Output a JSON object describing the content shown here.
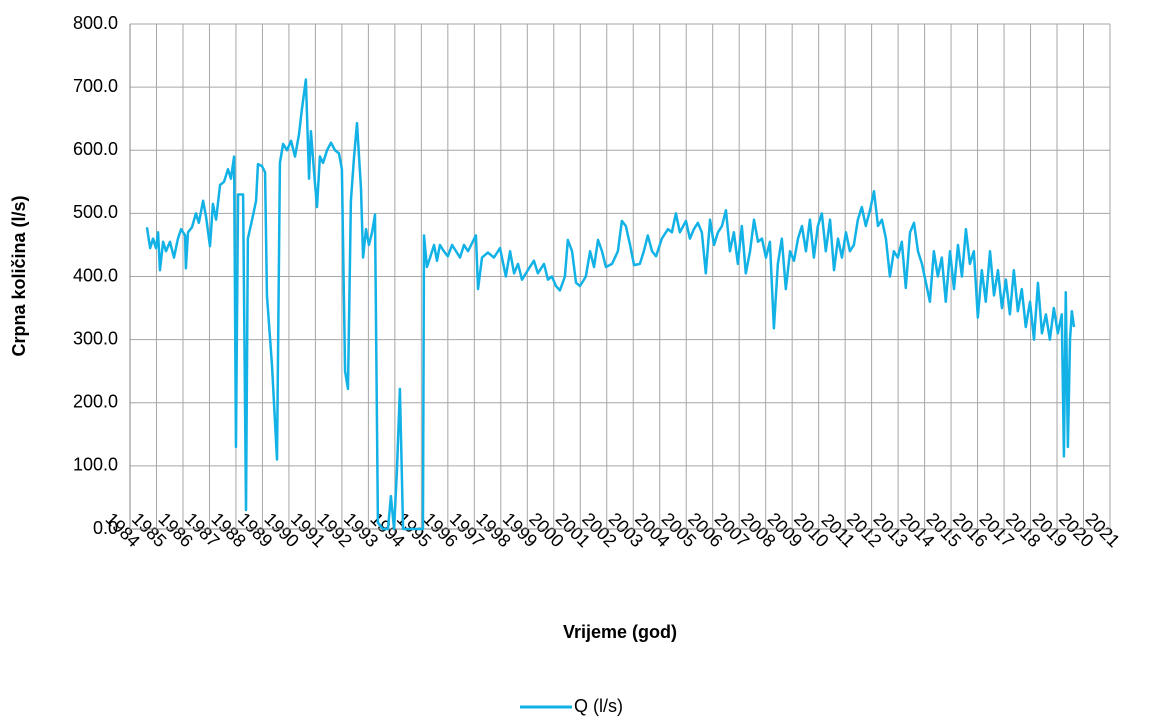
{
  "chart_data": {
    "type": "line",
    "x_label": "Vrijeme (god)",
    "y_label": "Crpna količina (l/s)",
    "xlim": [
      1984,
      2021
    ],
    "xticks": [
      1984,
      1985,
      1986,
      1987,
      1988,
      1989,
      1990,
      1991,
      1992,
      1993,
      1994,
      1995,
      1996,
      1997,
      1998,
      1999,
      2000,
      2001,
      2002,
      2003,
      2004,
      2005,
      2006,
      2007,
      2008,
      2009,
      2010,
      2011,
      2012,
      2013,
      2014,
      2015,
      2016,
      2017,
      2018,
      2019,
      2020,
      2021
    ],
    "ylim": [
      0,
      800
    ],
    "yticks": [
      {
        "value": 0,
        "label": "0.0"
      },
      {
        "value": 100,
        "label": "100.0"
      },
      {
        "value": 200,
        "label": "200.0"
      },
      {
        "value": 300,
        "label": "300.0"
      },
      {
        "value": 400,
        "label": "400.0"
      },
      {
        "value": 500,
        "label": "500.0"
      },
      {
        "value": 600,
        "label": "600.0"
      },
      {
        "value": 700,
        "label": "700.0"
      },
      {
        "value": 800,
        "label": "800.0"
      }
    ],
    "grid": true,
    "legend": "bottom",
    "x": [
      1984.64,
      1984.76,
      1984.87,
      1984.98,
      1985.06,
      1985.13,
      1985.25,
      1985.36,
      1985.51,
      1985.66,
      1985.81,
      1985.93,
      1986.08,
      1986.11,
      1986.19,
      1986.34,
      1986.49,
      1986.6,
      1986.76,
      1986.87,
      1987.02,
      1987.13,
      1987.25,
      1987.4,
      1987.55,
      1987.7,
      1987.81,
      1987.93,
      1988.0,
      1988.08,
      1988.27,
      1988.38,
      1988.45,
      1988.61,
      1988.76,
      1988.83,
      1988.98,
      1989.1,
      1989.17,
      1989.36,
      1989.55,
      1989.66,
      1989.78,
      1989.93,
      1990.08,
      1990.23,
      1990.38,
      1990.49,
      1990.64,
      1990.76,
      1990.83,
      1990.95,
      1991.06,
      1991.17,
      1991.29,
      1991.44,
      1991.59,
      1991.74,
      1991.89,
      1992.0,
      1992.12,
      1992.23,
      1992.34,
      1992.46,
      1992.57,
      1992.72,
      1992.8,
      1992.91,
      1993.02,
      1993.14,
      1993.25,
      1993.36,
      1993.55,
      1993.74,
      1993.85,
      1993.97,
      1994.08,
      1994.19,
      1994.31,
      1994.57,
      1994.87,
      1995.06,
      1995.1,
      1995.21,
      1995.33,
      1995.48,
      1995.59,
      1995.7,
      1995.85,
      1996.0,
      1996.16,
      1996.31,
      1996.46,
      1996.61,
      1996.76,
      1997.06,
      1997.14,
      1997.29,
      1997.51,
      1997.74,
      1997.97,
      1998.19,
      1998.35,
      1998.5,
      1998.65,
      1998.8,
      1999.02,
      1999.25,
      1999.4,
      1999.63,
      1999.78,
      1999.93,
      2000.08,
      2000.23,
      2000.42,
      2000.53,
      2000.69,
      2000.84,
      2000.99,
      2001.21,
      2001.37,
      2001.52,
      2001.67,
      2001.82,
      2001.97,
      2002.2,
      2002.42,
      2002.57,
      2002.72,
      2002.88,
      2003.03,
      2003.25,
      2003.4,
      2003.55,
      2003.71,
      2003.86,
      2004.08,
      2004.31,
      2004.46,
      2004.61,
      2004.76,
      2004.99,
      2005.14,
      2005.29,
      2005.44,
      2005.59,
      2005.74,
      2005.9,
      2006.05,
      2006.2,
      2006.35,
      2006.5,
      2006.65,
      2006.8,
      2006.95,
      2007.1,
      2007.25,
      2007.41,
      2007.56,
      2007.71,
      2007.86,
      2008.01,
      2008.16,
      2008.31,
      2008.46,
      2008.61,
      2008.76,
      2008.92,
      2009.07,
      2009.22,
      2009.37,
      2009.52,
      2009.67,
      2009.82,
      2009.97,
      2010.12,
      2010.27,
      2010.43,
      2010.58,
      2010.73,
      2010.88,
      2011.03,
      2011.18,
      2011.33,
      2011.48,
      2011.63,
      2011.78,
      2011.94,
      2012.09,
      2012.24,
      2012.39,
      2012.54,
      2012.69,
      2012.84,
      2012.99,
      2013.14,
      2013.29,
      2013.45,
      2013.6,
      2013.75,
      2013.9,
      2014.05,
      2014.2,
      2014.35,
      2014.5,
      2014.65,
      2014.8,
      2014.96,
      2015.11,
      2015.26,
      2015.41,
      2015.56,
      2015.71,
      2015.86,
      2016.01,
      2016.16,
      2016.31,
      2016.47,
      2016.62,
      2016.77,
      2016.92,
      2017.07,
      2017.22,
      2017.37,
      2017.52,
      2017.67,
      2017.82,
      2017.98,
      2018.13,
      2018.28,
      2018.43,
      2018.58,
      2018.73,
      2018.88,
      2019.03,
      2019.18,
      2019.26,
      2019.33,
      2019.41,
      2019.49,
      2019.56,
      2019.64
    ],
    "series": [
      {
        "name": "Q (l/s)",
        "color": "#12b1e6",
        "values": [
          478,
          445,
          460,
          445,
          470,
          410,
          455,
          440,
          455,
          430,
          460,
          475,
          465,
          413,
          470,
          478,
          500,
          485,
          520,
          495,
          448,
          515,
          490,
          545,
          550,
          570,
          555,
          590,
          130,
          530,
          530,
          30,
          460,
          490,
          520,
          578,
          575,
          565,
          370,
          260,
          110,
          580,
          610,
          600,
          615,
          590,
          625,
          665,
          712,
          555,
          630,
          565,
          510,
          590,
          580,
          600,
          612,
          600,
          595,
          570,
          250,
          222,
          520,
          590,
          643,
          540,
          430,
          475,
          450,
          470,
          498,
          10,
          0,
          0,
          52,
          0,
          95,
          222,
          0,
          0,
          0,
          0,
          465,
          415,
          430,
          450,
          425,
          450,
          440,
          432,
          450,
          440,
          430,
          450,
          440,
          465,
          380,
          430,
          438,
          430,
          445,
          400,
          440,
          405,
          420,
          395,
          410,
          425,
          405,
          420,
          395,
          400,
          385,
          378,
          400,
          458,
          440,
          390,
          385,
          400,
          440,
          415,
          458,
          440,
          415,
          420,
          440,
          488,
          480,
          450,
          418,
          420,
          440,
          465,
          440,
          432,
          460,
          475,
          470,
          500,
          470,
          488,
          460,
          475,
          485,
          470,
          405,
          490,
          450,
          470,
          480,
          505,
          440,
          470,
          420,
          480,
          405,
          440,
          490,
          455,
          460,
          430,
          455,
          318,
          420,
          460,
          380,
          440,
          425,
          460,
          480,
          440,
          490,
          430,
          480,
          500,
          440,
          490,
          410,
          460,
          430,
          470,
          440,
          450,
          490,
          510,
          480,
          505,
          535,
          480,
          490,
          460,
          400,
          440,
          430,
          455,
          382,
          470,
          485,
          440,
          420,
          390,
          360,
          440,
          400,
          430,
          360,
          440,
          380,
          450,
          400,
          475,
          420,
          440,
          335,
          410,
          360,
          440,
          370,
          410,
          350,
          395,
          340,
          410,
          345,
          380,
          320,
          360,
          300,
          390,
          310,
          340,
          300,
          350,
          310,
          340,
          115,
          375,
          130,
          300,
          345,
          320
        ]
      }
    ]
  }
}
